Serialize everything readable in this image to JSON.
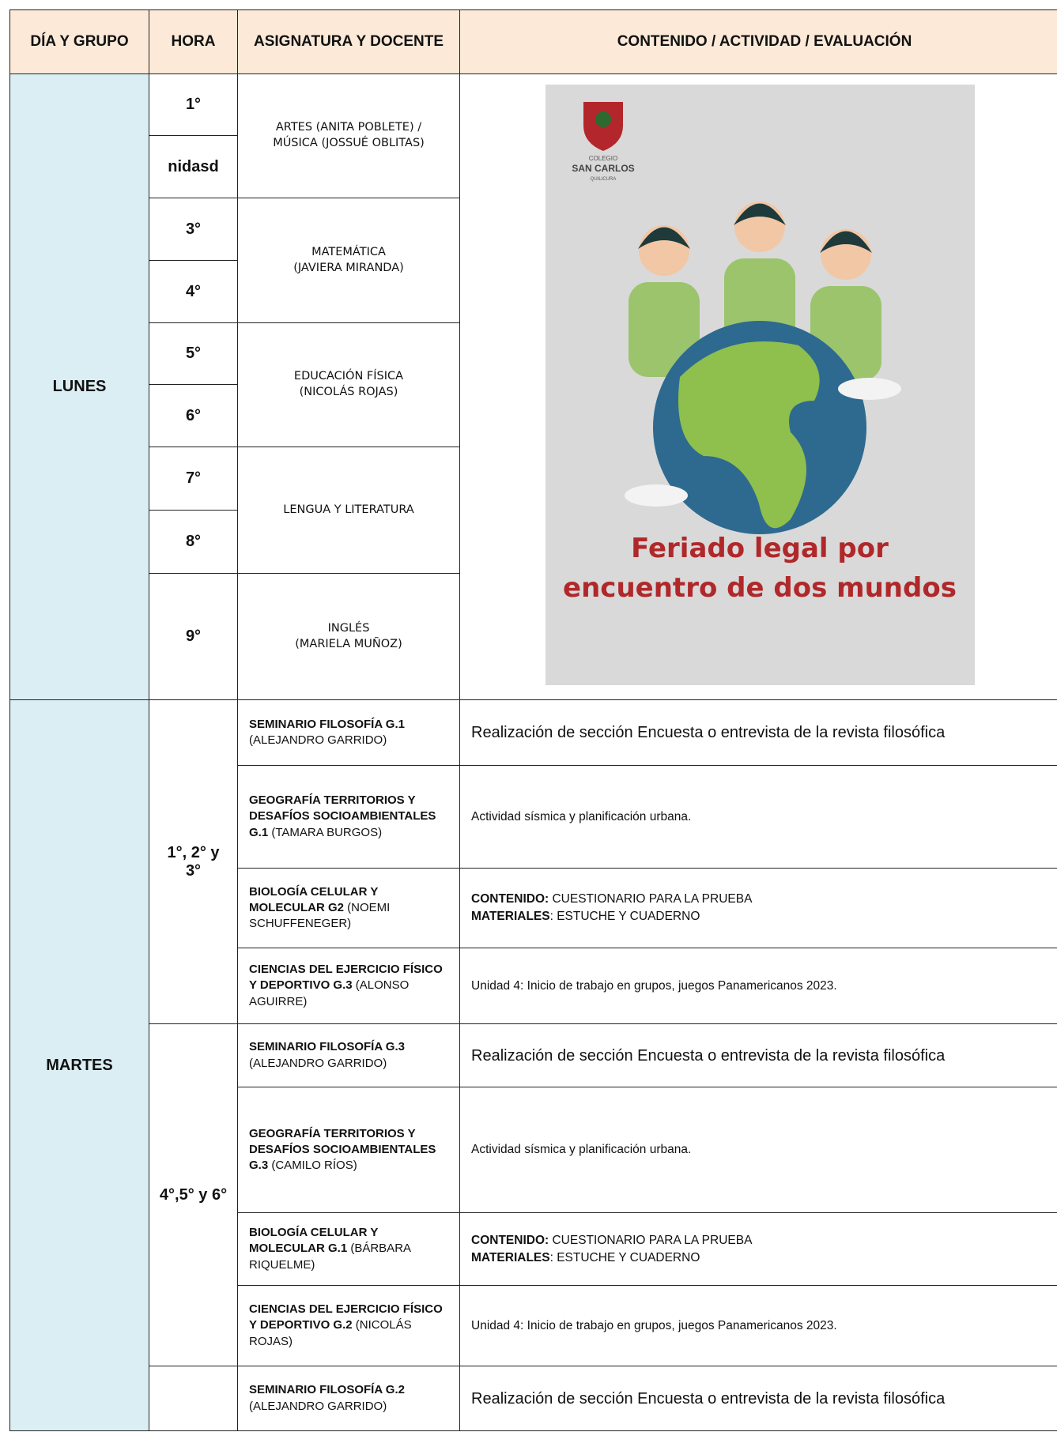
{
  "header": [
    "DÍA Y GRUPO",
    "HORA",
    "ASIGNATURA Y DOCENTE",
    "CONTENIDO / ACTIVIDAD / EVALUACIÓN"
  ],
  "lunes": {
    "day": "LUNES",
    "slots": [
      {
        "hours": [
          "1°",
          "nidasd"
        ],
        "subject": [
          "ARTES (ANITA POBLETE) /",
          "MÚSICA (JOSSUÉ OBLITAS)"
        ]
      },
      {
        "hours": [
          "3°",
          "4°"
        ],
        "subject": [
          "MATEMÁTICA",
          "(JAVIERA MIRANDA)"
        ]
      },
      {
        "hours": [
          "5°",
          "6°"
        ],
        "subject": [
          "EDUCACIÓN FÍSICA",
          "(NICOLÁS ROJAS)"
        ]
      },
      {
        "hours": [
          "7°",
          "8°"
        ],
        "subject": [
          "LENGUA Y LITERATURA"
        ]
      },
      {
        "hours": [
          "9°"
        ],
        "subject": [
          "INGLÉS",
          "(MARIELA MUÑOZ)"
        ]
      }
    ],
    "poster": {
      "school_top": "COLEGIO",
      "school": "SAN CARLOS",
      "school_bottom": "QUILICURA",
      "caption": [
        "Feriado legal por",
        "encuentro de dos mundos"
      ]
    }
  },
  "martes": {
    "day": "MARTES",
    "blocks": [
      {
        "hours": "1°, 2° y 3°",
        "classes": [
          {
            "subject": "SEMINARIO FILOSOFÍA G.1",
            "teacher": "(ALEJANDRO GARRIDO)",
            "content": [
              {
                "text": "Realización de sección Encuesta o entrevista de la revista filosófica"
              }
            ]
          },
          {
            "subject": "GEOGRAFÍA TERRITORIOS Y DESAFÍOS SOCIOAMBIENTALES G.1",
            "teacher": "(TAMARA BURGOS)",
            "content": [
              {
                "text": "Actividad sísmica y planificación urbana."
              }
            ]
          },
          {
            "subject": "BIOLOGÍA CELULAR Y MOLECULAR G2",
            "teacher": "(NOEMI SCHUFFENEGER)",
            "content": [
              {
                "label": "CONTENIDO:",
                "text": " CUESTIONARIO PARA LA PRUEBA"
              },
              {
                "label": "MATERIALES",
                "text": ": ESTUCHE Y CUADERNO"
              }
            ]
          },
          {
            "subject": "CIENCIAS DEL EJERCICIO FÍSICO Y DEPORTIVO G.3",
            "teacher": "(ALONSO AGUIRRE)",
            "content": [
              {
                "text": "Unidad 4: Inicio de trabajo en grupos, juegos Panamericanos 2023."
              }
            ]
          }
        ]
      },
      {
        "hours": "4°,5° y 6°",
        "classes": [
          {
            "subject": "SEMINARIO FILOSOFÍA G.3",
            "teacher": "(ALEJANDRO GARRIDO)",
            "content": [
              {
                "text": "Realización de sección Encuesta o entrevista de la revista filosófica"
              }
            ]
          },
          {
            "subject": "GEOGRAFÍA TERRITORIOS Y DESAFÍOS SOCIOAMBIENTALES G.3",
            "teacher": "(CAMILO RÍOS)",
            "content": [
              {
                "text": "Actividad sísmica y planificación urbana."
              }
            ]
          },
          {
            "subject": "BIOLOGÍA CELULAR Y MOLECULAR G.1",
            "teacher": "(BÁRBARA RIQUELME)",
            "content": [
              {
                "label": "CONTENIDO:",
                "text": " CUESTIONARIO PARA LA PRUEBA"
              },
              {
                "label": "MATERIALES",
                "text": ": ESTUCHE Y CUADERNO"
              }
            ]
          },
          {
            "subject": "CIENCIAS DEL EJERCICIO FÍSICO Y DEPORTIVO G.2",
            "teacher": "(NICOLÁS ROJAS)",
            "content": [
              {
                "text": "Unidad 4: Inicio de trabajo en grupos, juegos Panamericanos 2023."
              }
            ]
          }
        ]
      },
      {
        "classes": [
          {
            "subject": "SEMINARIO FILOSOFÍA G.2",
            "teacher": "(ALEJANDRO GARRIDO)",
            "content": [
              {
                "text": "Realización de sección Encuesta o entrevista de la revista filosófica"
              }
            ]
          }
        ]
      }
    ]
  }
}
